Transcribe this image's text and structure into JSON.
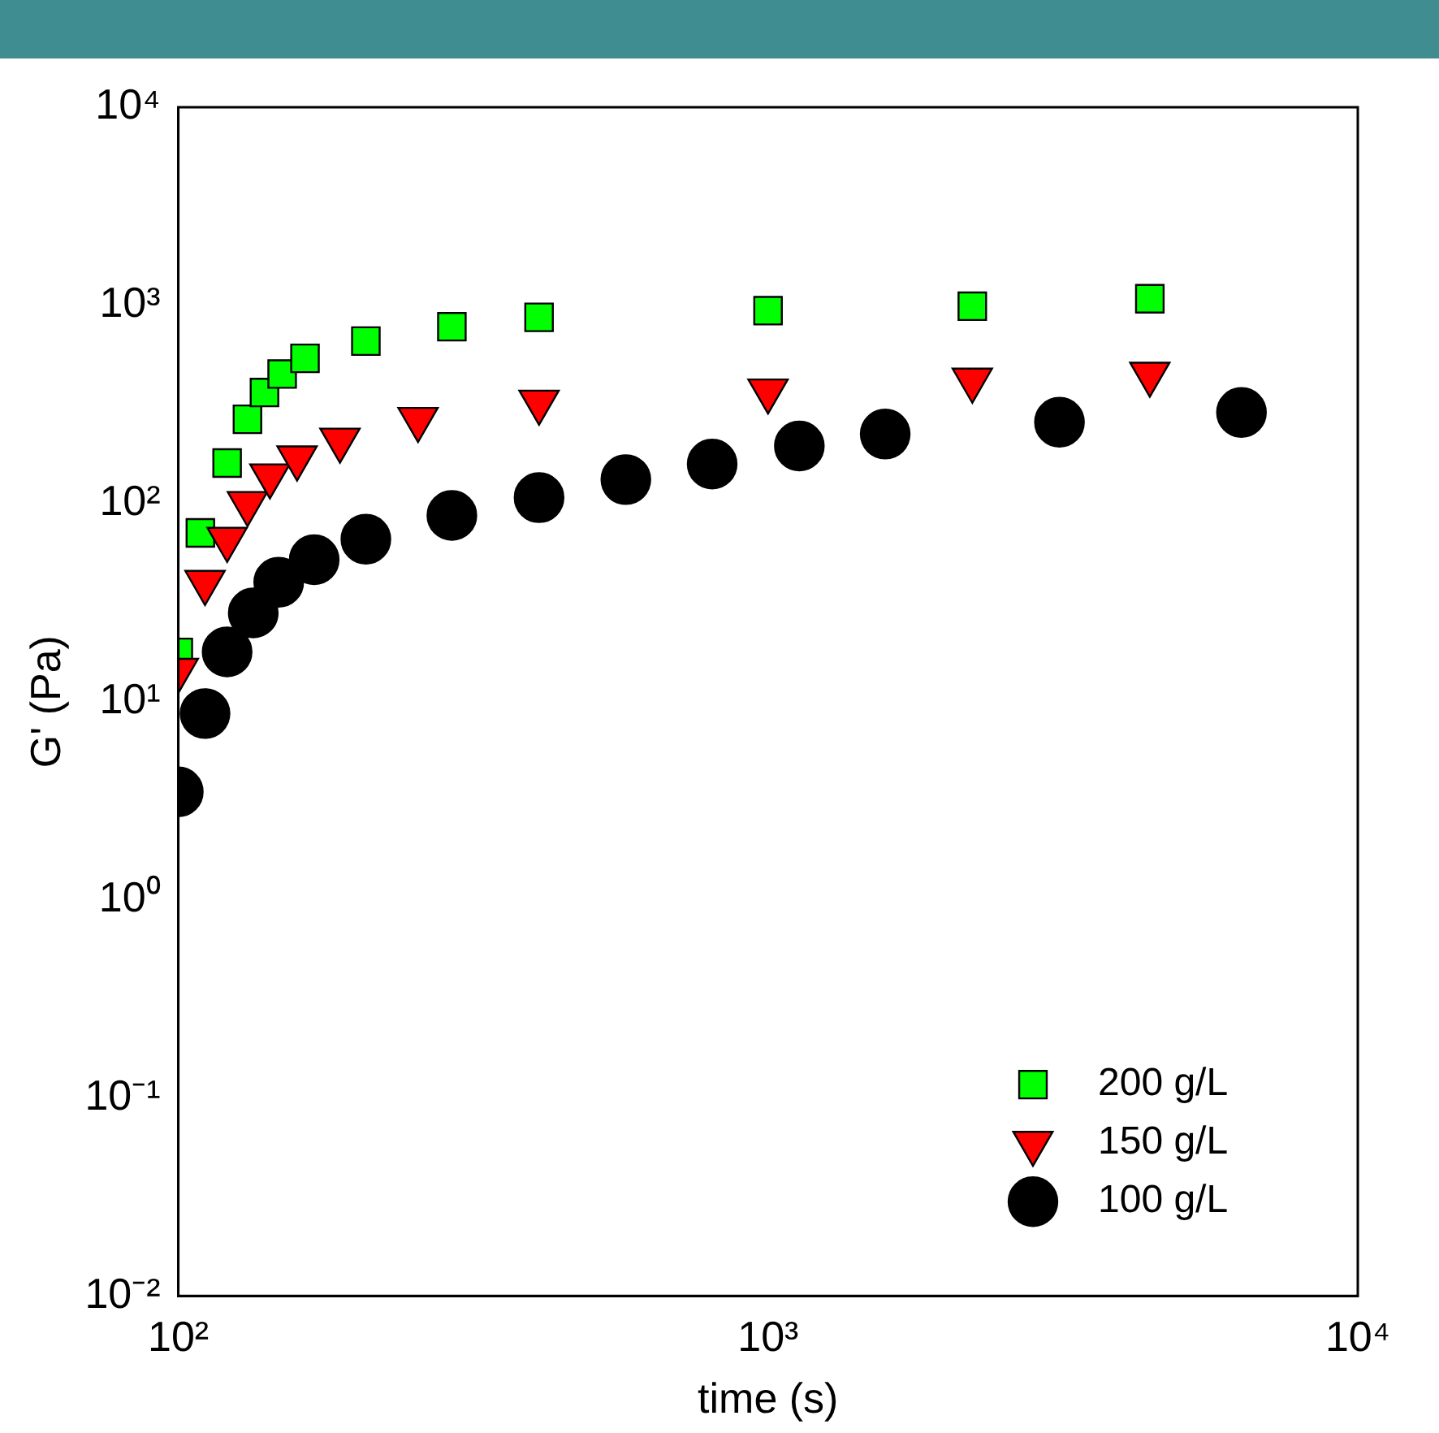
{
  "chart_data": {
    "type": "scatter",
    "xlabel": "time (s)",
    "ylabel": "G' (Pa)",
    "log": "xy",
    "xlim": [
      100,
      10000
    ],
    "ylim": [
      0.01,
      10000
    ],
    "xticks": [
      {
        "value": 100,
        "label": "10²"
      },
      {
        "value": 1000,
        "label": "10³"
      },
      {
        "value": 10000,
        "label": "10⁴"
      }
    ],
    "yticks": [
      {
        "value": 0.01,
        "label": "10⁻²"
      },
      {
        "value": 0.1,
        "label": "10⁻¹"
      },
      {
        "value": 1,
        "label": "10⁰"
      },
      {
        "value": 10,
        "label": "10¹"
      },
      {
        "value": 100,
        "label": "10²"
      },
      {
        "value": 1000,
        "label": "10³"
      },
      {
        "value": 10000,
        "label": "10⁴"
      }
    ],
    "grid": false,
    "legend": "bottom right",
    "series": [
      {
        "name": "200 g/L",
        "color": "#00ff00",
        "marker": "square",
        "x": [
          100,
          109,
          121,
          131,
          140,
          150,
          164,
          208,
          291,
          409,
          1000,
          2220,
          4440
        ],
        "values": [
          17.7,
          71,
          160,
          266,
          363,
          450,
          540,
          660,
          780,
          870,
          940,
          990,
          1080
        ]
      },
      {
        "name": "150 g/L",
        "color": "#ff0000",
        "marker": "triangle",
        "x": [
          100,
          111,
          121,
          131,
          143,
          159,
          188,
          255,
          409,
          1000,
          2220,
          4440
        ],
        "values": [
          14.4,
          40,
          66,
          100,
          138,
          170,
          209,
          266,
          325,
          370,
          420,
          450
        ]
      },
      {
        "name": "100 g/L",
        "color": "#000000",
        "marker": "circle",
        "x": [
          100,
          111,
          121,
          134,
          148,
          170,
          208,
          291,
          409,
          574,
          804,
          1130,
          1580,
          3120,
          6350
        ],
        "values": [
          3.5,
          8.7,
          17.8,
          28,
          40,
          52,
          66,
          87,
          107,
          132,
          158,
          195,
          224,
          257,
          288
        ]
      }
    ]
  }
}
